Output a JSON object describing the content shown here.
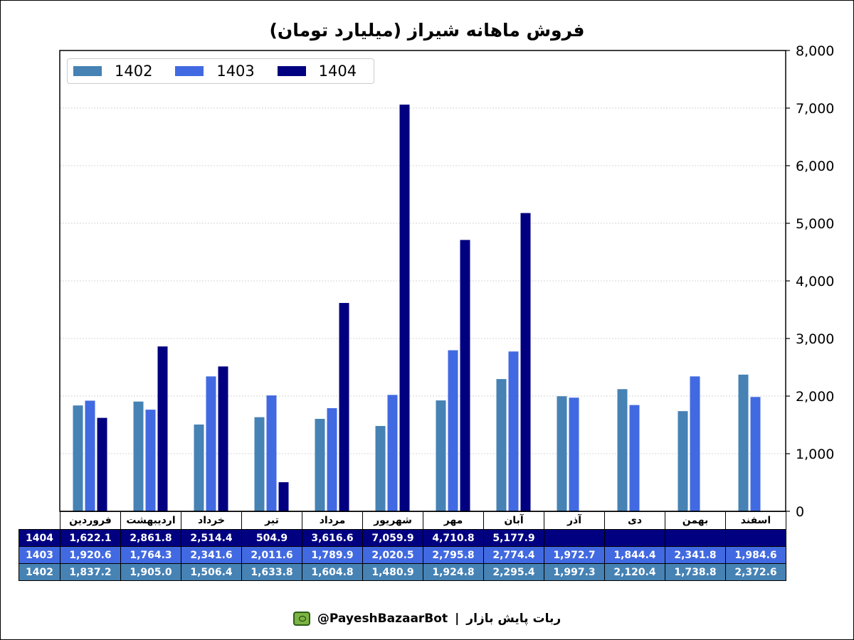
{
  "chart_data": {
    "type": "bar",
    "title": "فروش ماهانه شیراز (میلیارد تومان)",
    "categories": [
      "فروردین",
      "اردیبهشت",
      "خرداد",
      "تیر",
      "مرداد",
      "شهریور",
      "مهر",
      "آبان",
      "آذر",
      "دی",
      "بهمن",
      "اسفند"
    ],
    "series": [
      {
        "name": "1402",
        "color": "#4682b4",
        "values": [
          1837.2,
          1905.0,
          1506.4,
          1633.8,
          1604.8,
          1480.9,
          1924.8,
          2295.4,
          1997.3,
          2120.4,
          1738.8,
          2372.6
        ]
      },
      {
        "name": "1403",
        "color": "#4169e1",
        "values": [
          1920.6,
          1764.3,
          2341.6,
          2011.6,
          1789.9,
          2020.5,
          2795.8,
          2774.4,
          1972.7,
          1844.4,
          2341.8,
          1984.6
        ]
      },
      {
        "name": "1404",
        "color": "#000080",
        "values": [
          1622.1,
          2861.8,
          2514.4,
          504.9,
          3616.6,
          7059.9,
          4710.8,
          5177.9,
          null,
          null,
          null,
          null
        ]
      }
    ],
    "ylim": [
      0,
      8000
    ],
    "yticks": [
      0,
      1000,
      2000,
      3000,
      4000,
      5000,
      6000,
      7000,
      8000
    ],
    "ytick_labels": [
      "0",
      "1,000",
      "2,000",
      "3,000",
      "4,000",
      "5,000",
      "6,000",
      "7,000",
      "8,000"
    ],
    "yaxis_position": "right",
    "grid": true,
    "legend_position": "top-left",
    "table": {
      "rows": [
        {
          "label": "1404",
          "bg": "#000080",
          "fg": "#ffffff",
          "cells": [
            "1,622.1",
            "2,861.8",
            "2,514.4",
            "504.9",
            "3,616.6",
            "7,059.9",
            "4,710.8",
            "5,177.9",
            "",
            "",
            "",
            ""
          ]
        },
        {
          "label": "1403",
          "bg": "#4169e1",
          "fg": "#ffffff",
          "cells": [
            "1,920.6",
            "1,764.3",
            "2,341.6",
            "2,011.6",
            "1,789.9",
            "2,020.5",
            "2,795.8",
            "2,774.4",
            "1,972.7",
            "1,844.4",
            "2,341.8",
            "1,984.6"
          ]
        },
        {
          "label": "1402",
          "bg": "#4682b4",
          "fg": "#ffffff",
          "cells": [
            "1,837.2",
            "1,905.0",
            "1,506.4",
            "1,633.8",
            "1,604.8",
            "1,480.9",
            "1,924.8",
            "2,295.4",
            "1,997.3",
            "2,120.4",
            "1,738.8",
            "2,372.6"
          ]
        }
      ]
    }
  },
  "footer": {
    "brand": "ربات پایش بازار",
    "separator": "|",
    "handle": "@PayeshBazaarBot",
    "icon": "tv-bot-icon"
  }
}
